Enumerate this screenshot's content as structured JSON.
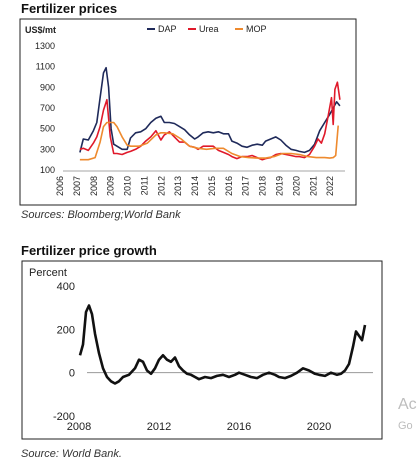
{
  "panel1": {
    "title": "Fertilizer prices",
    "source": "Sources: Bloomberg;World Bank"
  },
  "panel2": {
    "title": "Fertilizer price growth",
    "source": "Source: World Bank."
  },
  "watermark": {
    "line1": "Ac",
    "line2": "Go"
  },
  "chart_data": [
    {
      "type": "line",
      "ylabel": "US$/mt",
      "ylim": [
        100,
        1300
      ],
      "yticks": [
        100,
        300,
        500,
        700,
        900,
        1100,
        1300
      ],
      "xlim": [
        2006,
        2022.7
      ],
      "xticks": [
        "2006",
        "2007",
        "2008",
        "2009",
        "2010",
        "2011",
        "2012",
        "2013",
        "2014",
        "2015",
        "2016",
        "2017",
        "2018",
        "2019",
        "2020",
        "2021",
        "2022"
      ],
      "legend_position": "top-center",
      "series": [
        {
          "name": "DAP",
          "color": "#1f2a5a",
          "x": [
            2007.0,
            2007.2,
            2007.5,
            2007.8,
            2008.0,
            2008.2,
            2008.4,
            2008.55,
            2008.7,
            2008.85,
            2009.0,
            2009.2,
            2009.5,
            2009.8,
            2010.0,
            2010.3,
            2010.6,
            2010.9,
            2011.2,
            2011.5,
            2011.8,
            2012.0,
            2012.3,
            2012.6,
            2012.9,
            2013.2,
            2013.5,
            2013.8,
            2014.0,
            2014.3,
            2014.6,
            2014.9,
            2015.2,
            2015.5,
            2015.8,
            2016.0,
            2016.3,
            2016.6,
            2016.9,
            2017.2,
            2017.5,
            2017.8,
            2018.0,
            2018.3,
            2018.6,
            2018.9,
            2019.2,
            2019.5,
            2019.8,
            2020.0,
            2020.3,
            2020.6,
            2020.9,
            2021.2,
            2021.5,
            2021.8,
            2022.0,
            2022.2,
            2022.4
          ],
          "values": [
            270,
            400,
            390,
            480,
            560,
            800,
            1040,
            1090,
            900,
            500,
            350,
            330,
            300,
            300,
            410,
            460,
            470,
            500,
            560,
            600,
            620,
            560,
            560,
            550,
            520,
            490,
            440,
            400,
            420,
            460,
            470,
            460,
            470,
            450,
            450,
            380,
            360,
            330,
            320,
            340,
            350,
            340,
            380,
            400,
            420,
            390,
            340,
            300,
            290,
            280,
            270,
            290,
            350,
            480,
            560,
            640,
            700,
            760,
            720
          ]
        },
        {
          "name": "Urea",
          "color": "#e0192a",
          "x": [
            2007.0,
            2007.2,
            2007.5,
            2007.8,
            2008.0,
            2008.2,
            2008.4,
            2008.6,
            2008.8,
            2009.0,
            2009.2,
            2009.5,
            2009.8,
            2010.0,
            2010.3,
            2010.6,
            2010.9,
            2011.2,
            2011.5,
            2011.8,
            2012.0,
            2012.3,
            2012.6,
            2012.9,
            2013.2,
            2013.5,
            2013.8,
            2014.0,
            2014.3,
            2014.6,
            2014.9,
            2015.2,
            2015.5,
            2015.8,
            2016.0,
            2016.3,
            2016.6,
            2016.9,
            2017.2,
            2017.5,
            2017.8,
            2018.0,
            2018.3,
            2018.6,
            2018.9,
            2019.2,
            2019.5,
            2019.8,
            2020.0,
            2020.3,
            2020.6,
            2020.9,
            2021.1,
            2021.3,
            2021.5,
            2021.7,
            2021.9,
            2022.0,
            2022.1,
            2022.25,
            2022.4
          ],
          "values": [
            300,
            310,
            290,
            360,
            420,
            520,
            680,
            780,
            420,
            260,
            260,
            250,
            270,
            280,
            300,
            330,
            380,
            420,
            480,
            390,
            440,
            470,
            420,
            370,
            370,
            330,
            320,
            300,
            330,
            330,
            330,
            290,
            270,
            250,
            230,
            210,
            230,
            230,
            240,
            220,
            200,
            210,
            220,
            250,
            260,
            250,
            240,
            230,
            230,
            220,
            250,
            330,
            400,
            360,
            450,
            620,
            800,
            540,
            880,
            950,
            780
          ]
        },
        {
          "name": "MOP",
          "color": "#ee8a2e",
          "x": [
            2007.0,
            2007.5,
            2007.9,
            2008.2,
            2008.4,
            2008.6,
            2008.8,
            2009.0,
            2009.2,
            2009.5,
            2009.8,
            2010.0,
            2010.5,
            2011.0,
            2011.5,
            2011.8,
            2012.0,
            2012.5,
            2013.0,
            2013.5,
            2014.0,
            2014.5,
            2015.0,
            2015.5,
            2016.0,
            2016.5,
            2017.0,
            2017.5,
            2018.0,
            2018.5,
            2019.0,
            2019.5,
            2020.0,
            2020.5,
            2021.0,
            2021.5,
            2021.8,
            2022.0,
            2022.15,
            2022.3
          ],
          "values": [
            200,
            200,
            220,
            370,
            520,
            560,
            560,
            560,
            520,
            420,
            340,
            330,
            330,
            360,
            440,
            460,
            460,
            450,
            400,
            330,
            310,
            300,
            310,
            310,
            260,
            230,
            220,
            215,
            215,
            230,
            260,
            260,
            250,
            230,
            220,
            220,
            215,
            220,
            240,
            530
          ]
        }
      ]
    },
    {
      "type": "line",
      "ylabel": "Percent",
      "ylim": [
        -200,
        400
      ],
      "yticks": [
        -200,
        0,
        200,
        400
      ],
      "xlim": [
        2008,
        2022.7
      ],
      "xticks": [
        "2008",
        "2012",
        "2016",
        "2020"
      ],
      "series": [
        {
          "name": "",
          "color": "#111111",
          "x": [
            2008.05,
            2008.2,
            2008.35,
            2008.5,
            2008.65,
            2008.8,
            2009.0,
            2009.2,
            2009.4,
            2009.6,
            2009.8,
            2010.0,
            2010.2,
            2010.5,
            2010.8,
            2011.0,
            2011.2,
            2011.4,
            2011.6,
            2011.8,
            2012.0,
            2012.2,
            2012.4,
            2012.6,
            2012.8,
            2013.0,
            2013.2,
            2013.4,
            2013.6,
            2013.8,
            2014.0,
            2014.3,
            2014.6,
            2014.9,
            2015.2,
            2015.5,
            2015.8,
            2016.0,
            2016.3,
            2016.6,
            2016.9,
            2017.2,
            2017.5,
            2017.8,
            2018.0,
            2018.3,
            2018.6,
            2018.9,
            2019.2,
            2019.5,
            2019.8,
            2020.0,
            2020.3,
            2020.6,
            2020.9,
            2021.1,
            2021.3,
            2021.5,
            2021.7,
            2021.85,
            2022.0,
            2022.15,
            2022.3
          ],
          "values": [
            80,
            130,
            280,
            310,
            270,
            180,
            90,
            20,
            -20,
            -40,
            -50,
            -40,
            -20,
            -10,
            20,
            60,
            50,
            10,
            -5,
            20,
            60,
            80,
            60,
            50,
            70,
            30,
            10,
            -5,
            -10,
            -20,
            -30,
            -20,
            -25,
            -15,
            -10,
            -20,
            -10,
            0,
            -10,
            -20,
            -25,
            -10,
            0,
            -10,
            -20,
            -25,
            -15,
            0,
            20,
            10,
            -5,
            -10,
            -15,
            0,
            -10,
            -5,
            10,
            40,
            120,
            190,
            170,
            150,
            220
          ]
        }
      ]
    }
  ]
}
